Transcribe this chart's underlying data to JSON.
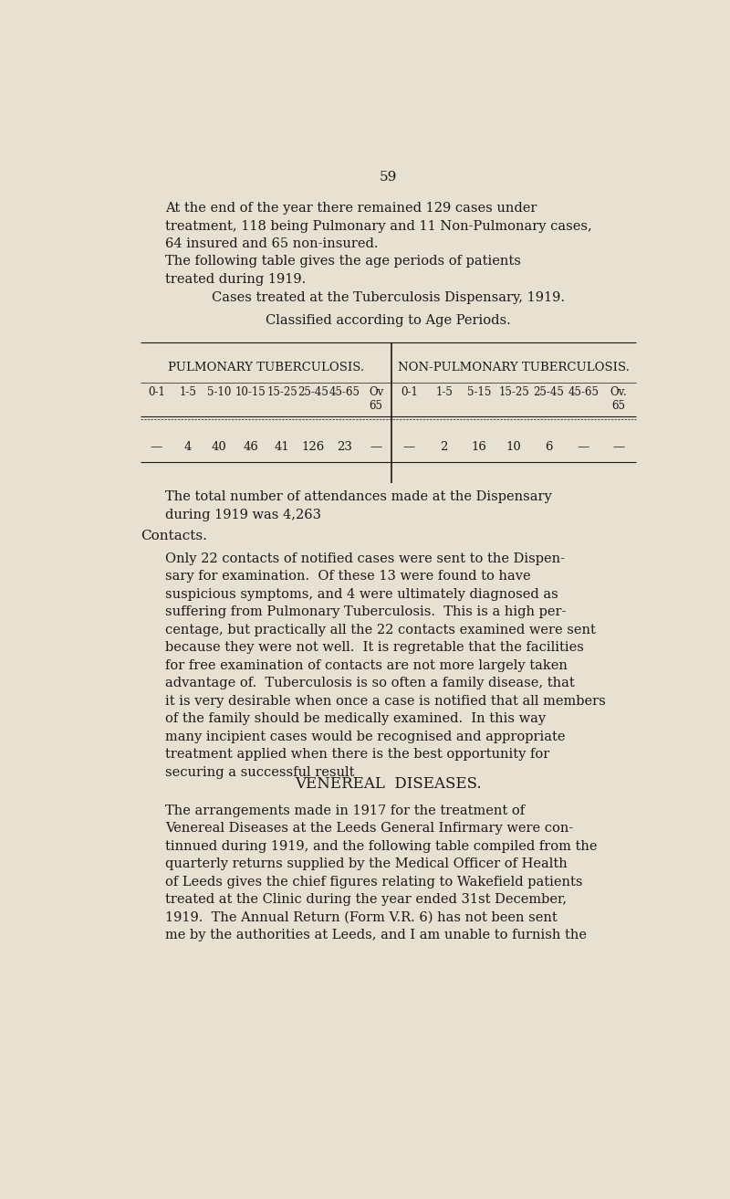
{
  "bg_color": "#e8e0d0",
  "text_color": "#1a1a1a",
  "page_number": "59",
  "para1": "At the end of the year there remained 129 cases under\ntreatment, 118 being Pulmonary and 11 Non-Pulmonary cases,\n64 insured and 65 non-insured.",
  "para2": "The following table gives the age periods of patients\ntreated during 1919.",
  "table_title1": "Cases treated at the Tuberculosis Dispensary, 1919.",
  "table_title2": "Classified according to Age Periods.",
  "pulmonary_header": "PULMONARY TUBERCULOSIS.",
  "nonpulmonary_header": "NON-PULMONARY TUBERCULOSIS.",
  "pulmonary_cols": [
    "0-1",
    "1-5",
    "5-10",
    "10-15",
    "15-25",
    "25-45",
    "45-65",
    "Ov\n65"
  ],
  "nonpulmonary_cols": [
    "0-1",
    "1-5",
    "5-15",
    "15-25",
    "25-45",
    "45-65",
    "Ov.\n65"
  ],
  "pulmonary_data": [
    "—",
    "4",
    "40",
    "46",
    "41",
    "126",
    "23",
    "—"
  ],
  "nonpulmonary_data": [
    "—",
    "2",
    "16",
    "10",
    "6",
    "—",
    "—"
  ],
  "para3": "The total number of attendances made at the Dispensary\nduring 1919 was 4,263",
  "contacts_heading": "Contacts.",
  "contacts_para": "Only 22 contacts of notified cases were sent to the Dispen-\nsary for examination.  Of these 13 were found to have\nsuspicious symptoms, and 4 were ultimately diagnosed as\nsuffering from Pulmonary Tuberculosis.  This is a high per-\ncentage, but practically all the 22 contacts examined were sent\nbecause they were not well.  It is regretable that the facilities\nfor free examination of contacts are not more largely taken\nadvantage of.  Tuberculosis is so often a family disease, that\nit is very desirable when once a case is notified that all members\nof the family should be medically examined.  In this way\nmany incipient cases would be recognised and appropriate\ntreatment applied when there is the best opportunity for\nsecuring a successful result",
  "venereal_heading": "VENEREAL  DISEASES.",
  "venereal_para": "The arrangements made in 1917 for the treatment of\nVenereal Diseases at the Leeds General Infirmary were con-\ntinnued during 1919, and the following table compiled from the\nquarterly returns supplied by the Medical Officer of Health\nof Leeds gives the chief figures relating to Wakefield patients\ntreated at the Clinic during the year ended 31st December,\n1919.  The Annual Return (Form V.R. 6) has not been sent\nme by the authorities at Leeds, and I am unable to furnish the"
}
